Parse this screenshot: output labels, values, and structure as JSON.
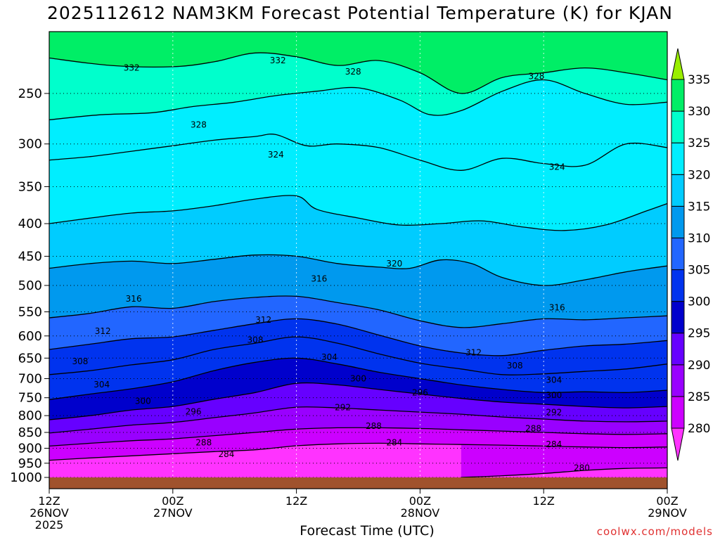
{
  "title": "2025112612 NAM3KM Forecast Potential Temperature (K) for KJAN",
  "xlabel": "Forecast Time (UTC)",
  "credit": "coolwx.com/models",
  "chart_data": {
    "type": "contour",
    "title": "2025112612 NAM3KM Forecast Potential Temperature (K) for KJAN",
    "xlabel": "Forecast Time (UTC)",
    "ylabel": "",
    "y_scale": "log-pressure",
    "y_inverted": true,
    "ylim": [
      1000,
      200
    ],
    "xlim_hours": [
      0,
      60
    ],
    "x_ticks": [
      {
        "hour": 0,
        "lines": [
          "12Z",
          "26NOV",
          "2025"
        ]
      },
      {
        "hour": 12,
        "lines": [
          "00Z",
          "27NOV"
        ]
      },
      {
        "hour": 24,
        "lines": [
          "12Z",
          ""
        ]
      },
      {
        "hour": 36,
        "lines": [
          "00Z",
          "28NOV"
        ]
      },
      {
        "hour": 48,
        "lines": [
          "12Z",
          ""
        ]
      },
      {
        "hour": 60,
        "lines": [
          "00Z",
          "29NOV"
        ]
      }
    ],
    "y_ticks": [
      250,
      300,
      350,
      400,
      450,
      500,
      550,
      600,
      650,
      700,
      750,
      800,
      850,
      900,
      950,
      1000
    ],
    "grid": true,
    "colorbar": {
      "levels": [
        280,
        285,
        290,
        295,
        300,
        305,
        310,
        315,
        320,
        325,
        330,
        335
      ],
      "colors": [
        "#ff33ff",
        "#cc00ff",
        "#9900ff",
        "#6600ff",
        "#0000cc",
        "#0033ee",
        "#2266ff",
        "#0099ee",
        "#00ccff",
        "#00eeff",
        "#00ffcc",
        "#00ee66",
        "#99ee00"
      ]
    },
    "contour_labels": [
      {
        "value": "332",
        "hour": 8.0,
        "p": 228
      },
      {
        "value": "332",
        "hour": 22.2,
        "p": 222
      },
      {
        "value": "328",
        "hour": 29.5,
        "p": 231
      },
      {
        "value": "328",
        "hour": 47.3,
        "p": 235
      },
      {
        "value": "328",
        "hour": 14.5,
        "p": 280
      },
      {
        "value": "324",
        "hour": 22.0,
        "p": 312
      },
      {
        "value": "324",
        "hour": 49.3,
        "p": 326
      },
      {
        "value": "320",
        "hour": 33.5,
        "p": 462
      },
      {
        "value": "316",
        "hour": 26.2,
        "p": 488
      },
      {
        "value": "316",
        "hour": 8.2,
        "p": 525
      },
      {
        "value": "316",
        "hour": 49.3,
        "p": 542
      },
      {
        "value": "312",
        "hour": 20.8,
        "p": 566
      },
      {
        "value": "312",
        "hour": 5.2,
        "p": 590
      },
      {
        "value": "312",
        "hour": 41.2,
        "p": 637
      },
      {
        "value": "308",
        "hour": 20.0,
        "p": 609
      },
      {
        "value": "308",
        "hour": 3.0,
        "p": 658
      },
      {
        "value": "308",
        "hour": 45.2,
        "p": 668
      },
      {
        "value": "304",
        "hour": 27.2,
        "p": 648
      },
      {
        "value": "304",
        "hour": 49.0,
        "p": 704
      },
      {
        "value": "304",
        "hour": 5.1,
        "p": 715
      },
      {
        "value": "300",
        "hour": 30.0,
        "p": 700
      },
      {
        "value": "300",
        "hour": 49.0,
        "p": 743
      },
      {
        "value": "300",
        "hour": 9.1,
        "p": 759
      },
      {
        "value": "296",
        "hour": 36.0,
        "p": 736
      },
      {
        "value": "296",
        "hour": 14.0,
        "p": 789
      },
      {
        "value": "292",
        "hour": 28.5,
        "p": 777
      },
      {
        "value": "292",
        "hour": 49.0,
        "p": 791
      },
      {
        "value": "288",
        "hour": 31.5,
        "p": 831
      },
      {
        "value": "288",
        "hour": 47.0,
        "p": 838
      },
      {
        "value": "288",
        "hour": 15.0,
        "p": 882
      },
      {
        "value": "284",
        "hour": 33.5,
        "p": 882
      },
      {
        "value": "284",
        "hour": 49.0,
        "p": 887
      },
      {
        "value": "284",
        "hour": 17.2,
        "p": 920
      },
      {
        "value": "280",
        "hour": 51.7,
        "p": 966
      }
    ],
    "isentropes": [
      {
        "value": 332,
        "knots": [
          [
            0,
            220
          ],
          [
            6,
            226
          ],
          [
            12,
            227
          ],
          [
            16,
            223
          ],
          [
            20,
            216
          ],
          [
            24,
            219
          ],
          [
            28,
            226
          ],
          [
            32,
            222
          ],
          [
            36,
            232
          ],
          [
            40,
            250
          ],
          [
            44,
            236
          ],
          [
            48,
            232
          ],
          [
            52,
            228
          ],
          [
            56,
            232
          ],
          [
            60,
            238
          ]
        ]
      },
      {
        "value": 328,
        "knots": [
          [
            0,
            275
          ],
          [
            5,
            270
          ],
          [
            10,
            268
          ],
          [
            14,
            262
          ],
          [
            18,
            258
          ],
          [
            22,
            252
          ],
          [
            26,
            248
          ],
          [
            30,
            245
          ],
          [
            34,
            256
          ],
          [
            37,
            270
          ],
          [
            40,
            266
          ],
          [
            44,
            248
          ],
          [
            48,
            238
          ],
          [
            52,
            250
          ],
          [
            56,
            260
          ],
          [
            60,
            258
          ]
        ]
      },
      {
        "value": 324,
        "knots": [
          [
            0,
            318
          ],
          [
            4,
            314
          ],
          [
            8,
            308
          ],
          [
            12,
            302
          ],
          [
            16,
            296
          ],
          [
            20,
            292
          ],
          [
            22,
            290
          ],
          [
            25,
            302
          ],
          [
            28,
            300
          ],
          [
            32,
            304
          ],
          [
            36,
            318
          ],
          [
            40,
            330
          ],
          [
            44,
            316
          ],
          [
            48,
            322
          ],
          [
            52,
            324
          ],
          [
            56,
            300
          ],
          [
            60,
            304
          ]
        ]
      },
      {
        "value": 320,
        "knots": [
          [
            0,
            400
          ],
          [
            4,
            392
          ],
          [
            8,
            385
          ],
          [
            12,
            382
          ],
          [
            16,
            375
          ],
          [
            20,
            366
          ],
          [
            24,
            362
          ],
          [
            26,
            380
          ],
          [
            30,
            392
          ],
          [
            34,
            402
          ],
          [
            38,
            400
          ],
          [
            42,
            396
          ],
          [
            46,
            405
          ],
          [
            50,
            410
          ],
          [
            54,
            402
          ],
          [
            58,
            382
          ],
          [
            60,
            372
          ]
        ]
      },
      {
        "value": 316,
        "knots": [
          [
            0,
            470
          ],
          [
            4,
            462
          ],
          [
            8,
            458
          ],
          [
            12,
            462
          ],
          [
            16,
            455
          ],
          [
            20,
            448
          ],
          [
            24,
            450
          ],
          [
            28,
            462
          ],
          [
            32,
            468
          ],
          [
            35,
            470
          ],
          [
            38,
            456
          ],
          [
            41,
            462
          ],
          [
            44,
            486
          ],
          [
            48,
            500
          ],
          [
            52,
            490
          ],
          [
            56,
            476
          ],
          [
            60,
            466
          ]
        ]
      },
      {
        "value": 312,
        "knots": [
          [
            0,
            562
          ],
          [
            4,
            553
          ],
          [
            8,
            540
          ],
          [
            12,
            543
          ],
          [
            16,
            530
          ],
          [
            20,
            522
          ],
          [
            24,
            520
          ],
          [
            28,
            532
          ],
          [
            32,
            546
          ],
          [
            36,
            568
          ],
          [
            40,
            582
          ],
          [
            44,
            574
          ],
          [
            48,
            564
          ],
          [
            52,
            566
          ],
          [
            56,
            562
          ],
          [
            60,
            558
          ]
        ]
      },
      {
        "value": 308,
        "knots": [
          [
            0,
            630
          ],
          [
            4,
            618
          ],
          [
            8,
            606
          ],
          [
            12,
            602
          ],
          [
            16,
            588
          ],
          [
            20,
            574
          ],
          [
            24,
            564
          ],
          [
            28,
            575
          ],
          [
            32,
            598
          ],
          [
            36,
            622
          ],
          [
            40,
            638
          ],
          [
            44,
            644
          ],
          [
            48,
            632
          ],
          [
            52,
            622
          ],
          [
            56,
            618
          ],
          [
            60,
            610
          ]
        ]
      },
      {
        "value": 304,
        "knots": [
          [
            0,
            690
          ],
          [
            4,
            680
          ],
          [
            8,
            666
          ],
          [
            12,
            654
          ],
          [
            16,
            630
          ],
          [
            20,
            616
          ],
          [
            24,
            602
          ],
          [
            28,
            616
          ],
          [
            32,
            640
          ],
          [
            36,
            662
          ],
          [
            40,
            676
          ],
          [
            44,
            690
          ],
          [
            48,
            688
          ],
          [
            52,
            682
          ],
          [
            56,
            676
          ],
          [
            60,
            664
          ]
        ]
      },
      {
        "value": 300,
        "knots": [
          [
            0,
            755
          ],
          [
            4,
            740
          ],
          [
            8,
            726
          ],
          [
            12,
            708
          ],
          [
            16,
            680
          ],
          [
            20,
            660
          ],
          [
            24,
            650
          ],
          [
            28,
            664
          ],
          [
            32,
            684
          ],
          [
            36,
            700
          ],
          [
            40,
            716
          ],
          [
            44,
            728
          ],
          [
            48,
            736
          ],
          [
            52,
            734
          ],
          [
            56,
            736
          ],
          [
            60,
            730
          ]
        ]
      },
      {
        "value": 296,
        "knots": [
          [
            0,
            812
          ],
          [
            4,
            800
          ],
          [
            8,
            784
          ],
          [
            12,
            774
          ],
          [
            16,
            754
          ],
          [
            20,
            736
          ],
          [
            24,
            712
          ],
          [
            28,
            716
          ],
          [
            32,
            728
          ],
          [
            36,
            740
          ],
          [
            40,
            752
          ],
          [
            44,
            762
          ],
          [
            48,
            768
          ],
          [
            52,
            774
          ],
          [
            56,
            778
          ],
          [
            60,
            774
          ]
        ]
      },
      {
        "value": 292,
        "knots": [
          [
            0,
            852
          ],
          [
            4,
            840
          ],
          [
            8,
            828
          ],
          [
            12,
            820
          ],
          [
            16,
            806
          ],
          [
            20,
            792
          ],
          [
            24,
            776
          ],
          [
            28,
            778
          ],
          [
            32,
            784
          ],
          [
            36,
            790
          ],
          [
            40,
            796
          ],
          [
            44,
            804
          ],
          [
            48,
            810
          ],
          [
            52,
            816
          ],
          [
            56,
            818
          ],
          [
            60,
            816
          ]
        ]
      },
      {
        "value": 288,
        "knots": [
          [
            0,
            893
          ],
          [
            4,
            884
          ],
          [
            8,
            876
          ],
          [
            12,
            870
          ],
          [
            16,
            860
          ],
          [
            20,
            850
          ],
          [
            24,
            840
          ],
          [
            28,
            836
          ],
          [
            32,
            836
          ],
          [
            36,
            838
          ],
          [
            40,
            842
          ],
          [
            44,
            846
          ],
          [
            48,
            850
          ],
          [
            52,
            854
          ],
          [
            56,
            856
          ],
          [
            60,
            854
          ]
        ]
      },
      {
        "value": 284,
        "knots": [
          [
            0,
            940
          ],
          [
            4,
            932
          ],
          [
            8,
            925
          ],
          [
            12,
            918
          ],
          [
            16,
            911
          ],
          [
            20,
            905
          ],
          [
            24,
            892
          ],
          [
            28,
            886
          ],
          [
            32,
            884
          ],
          [
            36,
            886
          ],
          [
            40,
            888
          ],
          [
            44,
            890
          ],
          [
            48,
            893
          ],
          [
            52,
            896
          ],
          [
            56,
            898
          ],
          [
            60,
            896
          ]
        ]
      },
      {
        "value": 280,
        "knots": [
          [
            40,
            1000
          ],
          [
            44,
            994
          ],
          [
            48,
            986
          ],
          [
            52,
            975
          ],
          [
            56,
            968
          ],
          [
            60,
            966
          ]
        ]
      }
    ],
    "surface_pressure": 1000,
    "surface_color": "#a0522d"
  }
}
